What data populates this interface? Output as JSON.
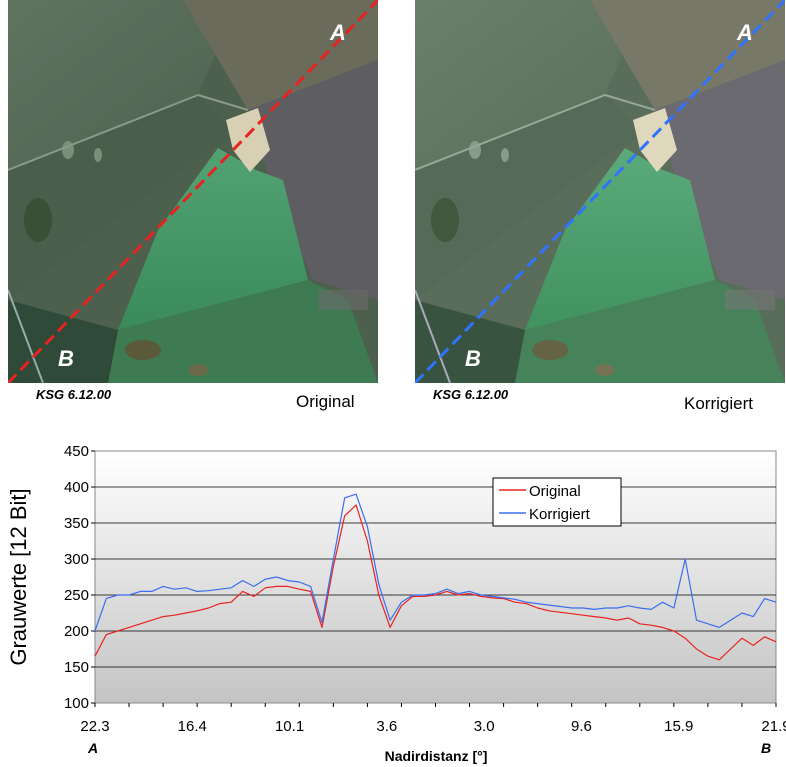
{
  "images": [
    {
      "code": "KSG 6.12.00",
      "label": "Original",
      "point_a": "A",
      "point_b": "B",
      "line_color": "#e8231f"
    },
    {
      "code": "KSG 6.12.00",
      "label": "Korrigiert",
      "point_a": "A",
      "point_b": "B",
      "line_color": "#2f73ff"
    }
  ],
  "chart_data": {
    "type": "line",
    "ylabel": "Grauwerte [12 Bit]",
    "xlabel": "Nadirdistanz [°]",
    "ylim": [
      100,
      450
    ],
    "yticks": [
      100,
      150,
      200,
      250,
      300,
      350,
      400,
      450
    ],
    "xticks": [
      "22.3",
      "16.4",
      "10.1",
      "3.6",
      "3.0",
      "9.6",
      "15.9",
      "21.9"
    ],
    "x_end_labels": {
      "left": "A",
      "right": "B"
    },
    "legend": "top-right",
    "grid": true,
    "series": [
      {
        "name": "Original",
        "color": "#e8231f",
        "values": [
          165,
          195,
          200,
          205,
          210,
          215,
          220,
          222,
          225,
          228,
          232,
          238,
          240,
          255,
          248,
          260,
          262,
          262,
          258,
          255,
          205,
          290,
          360,
          375,
          325,
          250,
          205,
          235,
          248,
          248,
          250,
          255,
          250,
          252,
          248,
          246,
          245,
          240,
          238,
          232,
          228,
          226,
          224,
          222,
          220,
          218,
          215,
          218,
          210,
          208,
          205,
          200,
          190,
          175,
          165,
          160,
          175,
          190,
          180,
          192,
          185
        ]
      },
      {
        "name": "Korrigiert",
        "color": "#3a6ef0",
        "values": [
          200,
          245,
          250,
          250,
          255,
          255,
          262,
          258,
          260,
          255,
          256,
          258,
          260,
          270,
          262,
          272,
          275,
          270,
          268,
          262,
          212,
          300,
          385,
          390,
          345,
          265,
          215,
          240,
          250,
          250,
          252,
          258,
          252,
          255,
          250,
          248,
          246,
          244,
          240,
          238,
          236,
          234,
          232,
          232,
          230,
          232,
          232,
          235,
          232,
          230,
          240,
          232,
          300,
          215,
          210,
          205,
          215,
          225,
          220,
          245,
          240
        ]
      }
    ]
  }
}
